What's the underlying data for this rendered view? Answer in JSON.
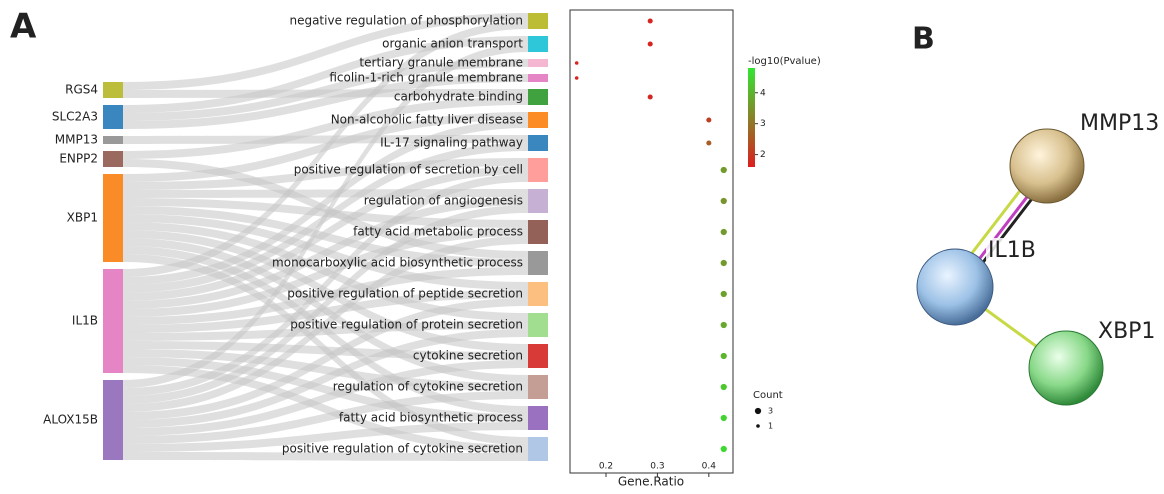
{
  "panel_labels": [
    "A",
    "B"
  ],
  "chart_data": {
    "type": "scatter",
    "categories": [
      "negative regulation of phosphorylation",
      "organic anion transport",
      "tertiary granule membrane",
      "ficolin-1-rich granule membrane",
      "carbohydrate binding",
      "Non-alcoholic fatty liver disease",
      "IL-17 signaling pathway",
      "positive regulation of secretion by cell",
      "regulation of angiogenesis",
      "fatty acid metabolic process",
      "monocarboxylic acid biosynthetic process",
      "positive regulation of peptide secretion",
      "positive regulation of protein secretion",
      "cytokine secretion",
      "regulation of cytokine secretion",
      "fatty acid biosynthetic process",
      "positive regulation of cytokine secretion"
    ],
    "values": [
      0.286,
      0.286,
      0.143,
      0.143,
      0.286,
      0.4,
      0.4,
      0.429,
      0.429,
      0.429,
      0.429,
      0.429,
      0.429,
      0.429,
      0.429,
      0.429,
      0.429
    ],
    "color_values": [
      1.7,
      1.7,
      1.7,
      1.7,
      1.75,
      2.1,
      2.6,
      3.6,
      3.5,
      3.6,
      3.6,
      3.7,
      3.8,
      4.0,
      4.3,
      4.5,
      4.6
    ],
    "sizes": [
      2,
      2,
      1,
      1,
      2,
      2,
      2,
      3,
      3,
      3,
      3,
      3,
      3,
      3,
      3,
      3,
      3
    ],
    "xlabel": "Gene.Ratio",
    "xlim": [
      0.13,
      0.447
    ],
    "xticks": [
      0.2,
      0.3,
      0.4
    ],
    "colorbar": {
      "title": "-log10(Pvalue)",
      "lim": [
        1.6,
        4.8
      ],
      "ticks": [
        2,
        3,
        4
      ],
      "color_low": "#dc1e1e",
      "color_high": "#32e632"
    },
    "size_legend": {
      "title": "Count",
      "values": [
        3,
        1
      ]
    }
  },
  "sankey": {
    "genes": [
      {
        "name": "RGS4",
        "color": "#bcbd3a"
      },
      {
        "name": "SLC2A3",
        "color": "#3a87c0"
      },
      {
        "name": "MMP13",
        "color": "#999999"
      },
      {
        "name": "ENPP2",
        "color": "#9a6a5e"
      },
      {
        "name": "XBP1",
        "color": "#f98c27"
      },
      {
        "name": "IL1B",
        "color": "#e585c5"
      },
      {
        "name": "ALOX15B",
        "color": "#9b77c0"
      }
    ],
    "term_colors": [
      "#bdbd35",
      "#2dc7d9",
      "#f5b6d2",
      "#e585c5",
      "#3fa23f",
      "#fb8c26",
      "#3a87c0",
      "#ff9e9a",
      "#c6b0d4",
      "#946159",
      "#999999",
      "#fdbf7f",
      "#a1de8f",
      "#d83a38",
      "#c49d94",
      "#9a71c0",
      "#b0c7e6"
    ],
    "links": [
      [
        0,
        0
      ],
      [
        5,
        0
      ],
      [
        1,
        1
      ],
      [
        6,
        1
      ],
      [
        1,
        2
      ],
      [
        1,
        3
      ],
      [
        0,
        4
      ],
      [
        3,
        4
      ],
      [
        4,
        5
      ],
      [
        5,
        5
      ],
      [
        5,
        6
      ],
      [
        2,
        6
      ],
      [
        4,
        7
      ],
      [
        5,
        7
      ],
      [
        6,
        7
      ],
      [
        4,
        8
      ],
      [
        5,
        8
      ],
      [
        6,
        8
      ],
      [
        4,
        9
      ],
      [
        5,
        9
      ],
      [
        6,
        9
      ],
      [
        4,
        10
      ],
      [
        5,
        10
      ],
      [
        3,
        10
      ],
      [
        4,
        11
      ],
      [
        5,
        11
      ],
      [
        6,
        11
      ],
      [
        4,
        12
      ],
      [
        5,
        12
      ],
      [
        6,
        12
      ],
      [
        4,
        13
      ],
      [
        5,
        13
      ],
      [
        6,
        13
      ],
      [
        4,
        14
      ],
      [
        5,
        14
      ],
      [
        6,
        14
      ],
      [
        4,
        15
      ],
      [
        5,
        15
      ],
      [
        6,
        15
      ],
      [
        4,
        16
      ],
      [
        5,
        16
      ],
      [
        6,
        16
      ]
    ]
  },
  "network": {
    "nodes": [
      "MMP13",
      "IL1B",
      "XBP1"
    ]
  }
}
